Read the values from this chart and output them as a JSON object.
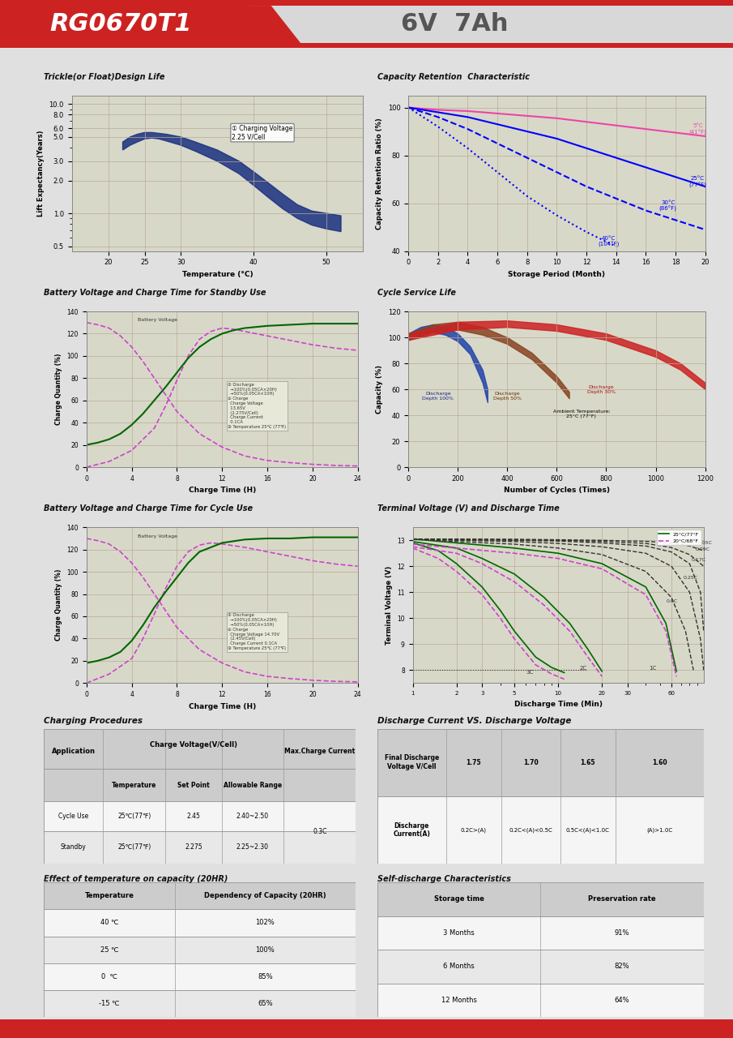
{
  "title_model": "RG0670T1",
  "title_spec": "6V  7Ah",
  "header_bg": "#cc2222",
  "header_text_color": "#ffffff",
  "spec_text_color": "#555555",
  "chart_bg": "#d8d8c8",
  "grid_color": "#bbaa99",
  "trickle_title": "Trickle(or Float)Design Life",
  "trickle_xlabel": "Temperature (°C)",
  "trickle_ylabel": "Lift Expectancy(Years)",
  "trickle_annotation": "① Charging Voltage\n2.25 V/Cell",
  "cap_ret_title": "Capacity Retention  Characteristic",
  "cap_ret_xlabel": "Storage Period (Month)",
  "cap_ret_ylabel": "Capacity Retention Ratio (%)",
  "bv_standby_title": "Battery Voltage and Charge Time for Standby Use",
  "bv_cycle_title": "Battery Voltage and Charge Time for Cycle Use",
  "bv_xlabel": "Charge Time (H)",
  "cycle_life_title": "Cycle Service Life",
  "cycle_life_xlabel": "Number of Cycles (Times)",
  "cycle_life_ylabel": "Capacity (%)",
  "terminal_title": "Terminal Voltage (V) and Discharge Time",
  "terminal_xlabel": "Discharge Time (Min)",
  "terminal_ylabel": "Terminal Voltage (V)",
  "charge_proc_title": "Charging Procedures",
  "discharge_vs_title": "Discharge Current VS. Discharge Voltage",
  "temp_effect_title": "Effect of temperature on capacity (20HR)",
  "self_discharge_title": "Self-discharge Characteristics",
  "temp_effect_rows": [
    [
      "40 ℃",
      "102%"
    ],
    [
      "25 ℃",
      "100%"
    ],
    [
      "0  ℃",
      "85%"
    ],
    [
      "-15 ℃",
      "65%"
    ]
  ],
  "self_discharge_rows": [
    [
      "3 Months",
      "91%"
    ],
    [
      "6 Months",
      "82%"
    ],
    [
      "12 Months",
      "64%"
    ]
  ]
}
